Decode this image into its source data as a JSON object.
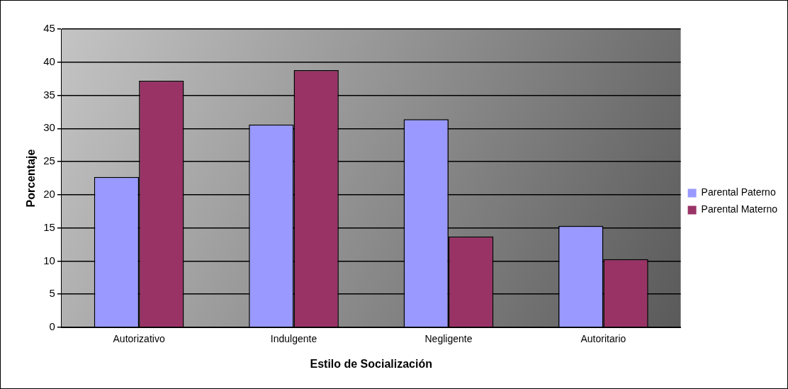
{
  "chart_data": {
    "type": "bar",
    "xlabel": "Estilo de Socialización",
    "ylabel": "Porcentaje",
    "categories": [
      "Autorizativo",
      "Indulgente",
      "Negligente",
      "Autoritario"
    ],
    "series": [
      {
        "name": "Parental Paterno",
        "color": "#9999ff",
        "values": [
          22.7,
          30.6,
          31.4,
          15.3
        ]
      },
      {
        "name": "Parental Materno",
        "color": "#993366",
        "values": [
          37.2,
          38.8,
          13.7,
          10.3
        ]
      }
    ],
    "ylim": [
      0,
      45
    ],
    "yticks": [
      0,
      5,
      10,
      15,
      20,
      25,
      30,
      35,
      40,
      45
    ],
    "grid": "y",
    "legend": "right"
  }
}
